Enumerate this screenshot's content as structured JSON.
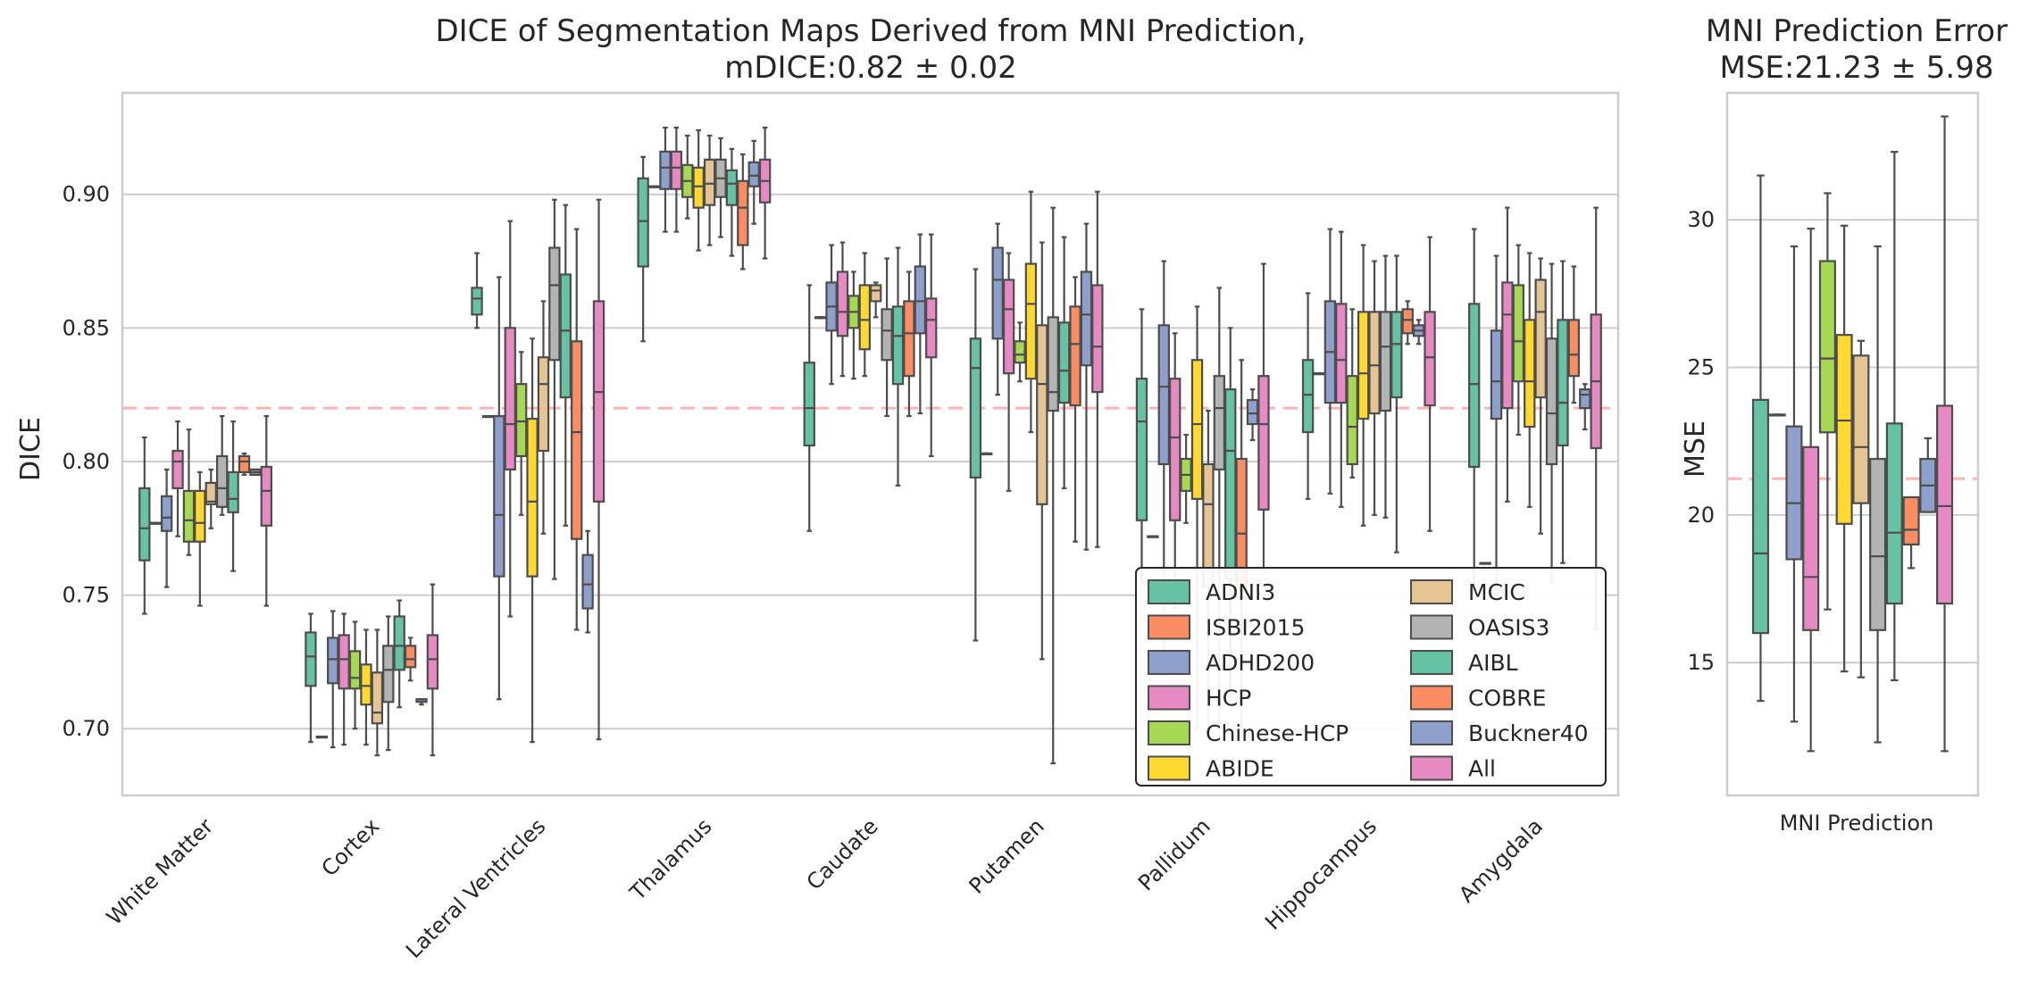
{
  "colors": {
    "ADNI3": "#66c2a5",
    "ISBI2015": "#fc8d62",
    "ADHD200": "#8da0cb",
    "HCP": "#e78ac3",
    "Chinese-HCP": "#a6d854",
    "ABIDE": "#ffd92f",
    "MCIC": "#e5c494",
    "OASIS3": "#b3b3b3",
    "AIBL": "#66c2a5",
    "COBRE": "#fc8d62",
    "Buckner40": "#8da0cb",
    "All": "#e78ac3",
    "grid": "#cccccc",
    "reference_line": "#ff9999",
    "box_edge": "#4d4d4d"
  },
  "chart_data": [
    {
      "type": "box",
      "title": "DICE of Segmentation Maps Derived from MNI Prediction,",
      "subtitle": "mDICE:0.82 ± 0.02",
      "ylabel": "DICE",
      "xlabel": "",
      "ylim": [
        0.675,
        0.938
      ],
      "yticks": [
        "0.70",
        "0.75",
        "0.80",
        "0.85",
        "0.90"
      ],
      "grid": true,
      "reference_line": 0.82,
      "categories": [
        "White Matter",
        "Cortex",
        "Lateral Ventricles",
        "Thalamus",
        "Caudate",
        "Putamen",
        "Pallidum",
        "Hippocampus",
        "Amygdala"
      ],
      "series_names": [
        "ADNI3",
        "ISBI2015",
        "ADHD200",
        "HCP",
        "Chinese-HCP",
        "ABIDE",
        "MCIC",
        "OASIS3",
        "AIBL",
        "COBRE",
        "Buckner40",
        "All"
      ],
      "legend_position": "lower-right",
      "legend_entries": [
        "ADNI3",
        "ISBI2015",
        "ADHD200",
        "HCP",
        "Chinese-HCP",
        "ABIDE",
        "MCIC",
        "OASIS3",
        "AIBL",
        "COBRE",
        "Buckner40",
        "All"
      ],
      "boxes": [
        [
          [
            0.743,
            0.763,
            0.775,
            0.79,
            0.809
          ],
          [
            0.777,
            0.777,
            0.777,
            0.777,
            0.777
          ],
          [
            0.753,
            0.774,
            0.779,
            0.787,
            0.797
          ],
          [
            0.772,
            0.79,
            0.8,
            0.804,
            0.815
          ],
          [
            0.765,
            0.77,
            0.778,
            0.789,
            0.812
          ],
          [
            0.746,
            0.77,
            0.777,
            0.789,
            0.796
          ],
          [
            0.775,
            0.784,
            0.785,
            0.792,
            0.797
          ],
          [
            0.78,
            0.783,
            0.79,
            0.802,
            0.817
          ],
          [
            0.759,
            0.781,
            0.786,
            0.796,
            0.815
          ],
          [
            0.795,
            0.796,
            0.8,
            0.802,
            0.803
          ],
          [
            0.795,
            0.795,
            0.796,
            0.797,
            0.797
          ],
          [
            0.746,
            0.776,
            0.789,
            0.798,
            0.817
          ]
        ],
        [
          [
            0.695,
            0.716,
            0.727,
            0.736,
            0.743
          ],
          [
            0.697,
            0.697,
            0.697,
            0.697,
            0.697
          ],
          [
            0.693,
            0.717,
            0.726,
            0.734,
            0.744
          ],
          [
            0.694,
            0.715,
            0.726,
            0.735,
            0.743
          ],
          [
            0.7,
            0.715,
            0.719,
            0.729,
            0.74
          ],
          [
            0.694,
            0.709,
            0.716,
            0.724,
            0.737
          ],
          [
            0.69,
            0.702,
            0.706,
            0.721,
            0.737
          ],
          [
            0.692,
            0.71,
            0.722,
            0.731,
            0.742
          ],
          [
            0.708,
            0.722,
            0.731,
            0.742,
            0.748
          ],
          [
            0.718,
            0.723,
            0.726,
            0.731,
            0.734
          ],
          [
            0.709,
            0.71,
            0.711,
            0.711,
            0.711
          ],
          [
            0.69,
            0.715,
            0.726,
            0.735,
            0.754
          ]
        ],
        [
          [
            0.85,
            0.855,
            0.861,
            0.865,
            0.878
          ],
          [
            0.817,
            0.817,
            0.817,
            0.817,
            0.817
          ],
          [
            0.711,
            0.757,
            0.78,
            0.817,
            0.869
          ],
          [
            0.742,
            0.797,
            0.814,
            0.85,
            0.89
          ],
          [
            0.78,
            0.802,
            0.815,
            0.829,
            0.841
          ],
          [
            0.695,
            0.757,
            0.785,
            0.816,
            0.846
          ],
          [
            0.773,
            0.804,
            0.829,
            0.839,
            0.86
          ],
          [
            0.756,
            0.838,
            0.866,
            0.88,
            0.898
          ],
          [
            0.776,
            0.824,
            0.849,
            0.87,
            0.896
          ],
          [
            0.737,
            0.771,
            0.811,
            0.845,
            0.887
          ],
          [
            0.736,
            0.745,
            0.754,
            0.765,
            0.774
          ],
          [
            0.696,
            0.785,
            0.826,
            0.86,
            0.898
          ]
        ],
        [
          [
            0.845,
            0.873,
            0.89,
            0.906,
            0.914
          ],
          [
            0.903,
            0.903,
            0.903,
            0.903,
            0.903
          ],
          [
            0.886,
            0.902,
            0.91,
            0.916,
            0.925
          ],
          [
            0.886,
            0.902,
            0.91,
            0.916,
            0.925
          ],
          [
            0.891,
            0.899,
            0.905,
            0.911,
            0.922
          ],
          [
            0.879,
            0.895,
            0.903,
            0.91,
            0.924
          ],
          [
            0.881,
            0.896,
            0.904,
            0.913,
            0.922
          ],
          [
            0.884,
            0.899,
            0.906,
            0.913,
            0.921
          ],
          [
            0.877,
            0.896,
            0.904,
            0.909,
            0.917
          ],
          [
            0.872,
            0.881,
            0.895,
            0.905,
            0.915
          ],
          [
            0.889,
            0.903,
            0.907,
            0.912,
            0.92
          ],
          [
            0.876,
            0.897,
            0.905,
            0.913,
            0.925
          ]
        ],
        [
          [
            0.774,
            0.806,
            0.82,
            0.837,
            0.866
          ],
          [
            0.854,
            0.854,
            0.854,
            0.854,
            0.854
          ],
          [
            0.829,
            0.849,
            0.858,
            0.867,
            0.881
          ],
          [
            0.832,
            0.847,
            0.856,
            0.871,
            0.882
          ],
          [
            0.831,
            0.85,
            0.856,
            0.862,
            0.871
          ],
          [
            0.832,
            0.842,
            0.853,
            0.866,
            0.878
          ],
          [
            0.854,
            0.86,
            0.864,
            0.866,
            0.867
          ],
          [
            0.817,
            0.838,
            0.849,
            0.857,
            0.876
          ],
          [
            0.791,
            0.829,
            0.847,
            0.858,
            0.88
          ],
          [
            0.817,
            0.832,
            0.848,
            0.86,
            0.871
          ],
          [
            0.818,
            0.848,
            0.86,
            0.873,
            0.885
          ],
          [
            0.802,
            0.839,
            0.853,
            0.861,
            0.885
          ]
        ],
        [
          [
            0.733,
            0.794,
            0.835,
            0.846,
            0.872
          ],
          [
            0.803,
            0.803,
            0.803,
            0.803,
            0.803
          ],
          [
            0.825,
            0.846,
            0.868,
            0.88,
            0.889
          ],
          [
            0.789,
            0.833,
            0.857,
            0.868,
            0.878
          ],
          [
            0.83,
            0.837,
            0.84,
            0.845,
            0.852
          ],
          [
            0.811,
            0.831,
            0.859,
            0.874,
            0.901
          ],
          [
            0.726,
            0.784,
            0.829,
            0.851,
            0.882
          ],
          [
            0.687,
            0.819,
            0.826,
            0.854,
            0.895
          ],
          [
            0.79,
            0.822,
            0.834,
            0.852,
            0.884
          ],
          [
            0.77,
            0.821,
            0.844,
            0.858,
            0.869
          ],
          [
            0.767,
            0.836,
            0.855,
            0.871,
            0.889
          ],
          [
            0.768,
            0.826,
            0.843,
            0.866,
            0.901
          ]
        ],
        [
          [
            0.755,
            0.778,
            0.815,
            0.831,
            0.857
          ],
          [
            0.772,
            0.772,
            0.772,
            0.772,
            0.772
          ],
          [
            0.72,
            0.799,
            0.828,
            0.851,
            0.875
          ],
          [
            0.745,
            0.778,
            0.809,
            0.831,
            0.848
          ],
          [
            0.777,
            0.789,
            0.795,
            0.801,
            0.81
          ],
          [
            0.7,
            0.786,
            0.814,
            0.838,
            0.858
          ],
          [
            0.7,
            0.753,
            0.784,
            0.799,
            0.819
          ],
          [
            0.7,
            0.797,
            0.82,
            0.832,
            0.865
          ],
          [
            0.713,
            0.756,
            0.804,
            0.827,
            0.85
          ],
          [
            0.7,
            0.749,
            0.773,
            0.801,
            0.838
          ],
          [
            0.808,
            0.814,
            0.818,
            0.823,
            0.827
          ],
          [
            0.759,
            0.782,
            0.814,
            0.832,
            0.874
          ]
        ],
        [
          [
            0.786,
            0.811,
            0.825,
            0.838,
            0.863
          ],
          [
            0.833,
            0.833,
            0.833,
            0.833,
            0.833
          ],
          [
            0.788,
            0.822,
            0.841,
            0.86,
            0.887
          ],
          [
            0.783,
            0.822,
            0.838,
            0.859,
            0.886
          ],
          [
            0.794,
            0.799,
            0.813,
            0.832,
            0.857
          ],
          [
            0.776,
            0.816,
            0.833,
            0.856,
            0.881
          ],
          [
            0.78,
            0.818,
            0.836,
            0.856,
            0.875
          ],
          [
            0.779,
            0.819,
            0.843,
            0.856,
            0.877
          ],
          [
            0.766,
            0.824,
            0.844,
            0.856,
            0.877
          ],
          [
            0.844,
            0.848,
            0.853,
            0.857,
            0.86
          ],
          [
            0.844,
            0.847,
            0.849,
            0.851,
            0.853
          ],
          [
            0.774,
            0.821,
            0.839,
            0.856,
            0.884
          ]
        ],
        [
          [
            0.752,
            0.798,
            0.829,
            0.859,
            0.887
          ],
          [
            0.762,
            0.762,
            0.762,
            0.762,
            0.762
          ],
          [
            0.752,
            0.816,
            0.83,
            0.849,
            0.877
          ],
          [
            0.785,
            0.82,
            0.855,
            0.867,
            0.895
          ],
          [
            0.81,
            0.83,
            0.845,
            0.866,
            0.881
          ],
          [
            0.783,
            0.813,
            0.83,
            0.853,
            0.878
          ],
          [
            0.773,
            0.824,
            0.856,
            0.868,
            0.876
          ],
          [
            0.755,
            0.799,
            0.818,
            0.846,
            0.874
          ],
          [
            0.762,
            0.806,
            0.822,
            0.853,
            0.875
          ],
          [
            0.822,
            0.832,
            0.84,
            0.853,
            0.873
          ],
          [
            0.812,
            0.82,
            0.825,
            0.827,
            0.829
          ],
          [
            0.737,
            0.805,
            0.83,
            0.855,
            0.895
          ]
        ]
      ]
    },
    {
      "type": "box",
      "title": "MNI Prediction Error",
      "subtitle": "MSE:21.23 ± 5.98",
      "ylabel": "MSE",
      "xlabel": "MNI Prediction",
      "ylim": [
        10.5,
        34.3
      ],
      "yticks": [
        "15",
        "20",
        "25",
        "30"
      ],
      "grid": true,
      "reference_line": 21.23,
      "series_names": [
        "ADNI3",
        "ISBI2015",
        "ADHD200",
        "HCP",
        "Chinese-HCP",
        "ABIDE",
        "MCIC",
        "OASIS3",
        "AIBL",
        "COBRE",
        "Buckner40",
        "All"
      ],
      "boxes": [
        [
          13.7,
          16.0,
          18.7,
          23.9,
          31.5
        ],
        [
          23.4,
          23.4,
          23.4,
          23.4,
          23.4
        ],
        [
          13.0,
          18.5,
          20.4,
          23.0,
          29.1
        ],
        [
          12.0,
          16.1,
          17.9,
          22.3,
          29.7
        ],
        [
          16.8,
          22.8,
          25.3,
          28.6,
          30.9
        ],
        [
          14.7,
          19.7,
          23.2,
          26.1,
          29.8
        ],
        [
          14.5,
          20.4,
          22.3,
          25.4,
          25.9
        ],
        [
          12.3,
          16.1,
          18.6,
          21.9,
          29.1
        ],
        [
          14.4,
          17.0,
          19.4,
          23.1,
          32.3
        ],
        [
          18.2,
          19.0,
          19.5,
          20.6,
          20.6
        ],
        [
          20.1,
          20.1,
          21.0,
          21.9,
          22.6
        ],
        [
          12.0,
          17.0,
          20.3,
          23.7,
          33.5
        ]
      ]
    }
  ]
}
